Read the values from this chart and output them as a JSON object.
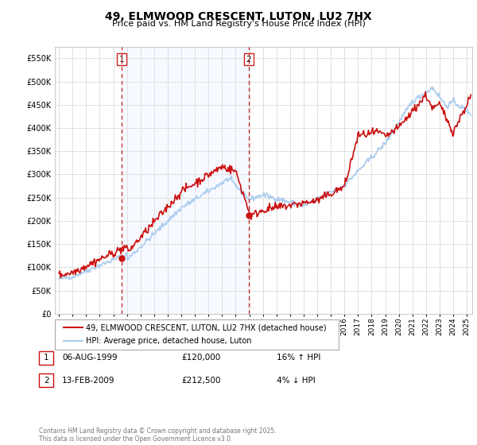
{
  "title": "49, ELMWOOD CRESCENT, LUTON, LU2 7HX",
  "subtitle": "Price paid vs. HM Land Registry's House Price Index (HPI)",
  "line1_label": "49, ELMWOOD CRESCENT, LUTON, LU2 7HX (detached house)",
  "line2_label": "HPI: Average price, detached house, Luton",
  "line1_color": "#cc1111",
  "line2_color": "#aaccee",
  "sale1_date": "06-AUG-1999",
  "sale1_price": "£120,000",
  "sale1_hpi": "16% ↑ HPI",
  "sale2_date": "13-FEB-2009",
  "sale2_price": "£212,500",
  "sale2_hpi": "4% ↓ HPI",
  "footer": "Contains HM Land Registry data © Crown copyright and database right 2025.\nThis data is licensed under the Open Government Licence v3.0.",
  "ylim": [
    0,
    575000
  ],
  "yticks": [
    0,
    50000,
    100000,
    150000,
    200000,
    250000,
    300000,
    350000,
    400000,
    450000,
    500000,
    550000
  ],
  "background_color": "#ffffff",
  "grid_color": "#e0e0e0",
  "sale1_x": 1999.6,
  "sale1_y": 120000,
  "sale2_x": 2008.95,
  "sale2_y": 212500,
  "xlim_low": 1994.7,
  "xlim_high": 2025.4
}
